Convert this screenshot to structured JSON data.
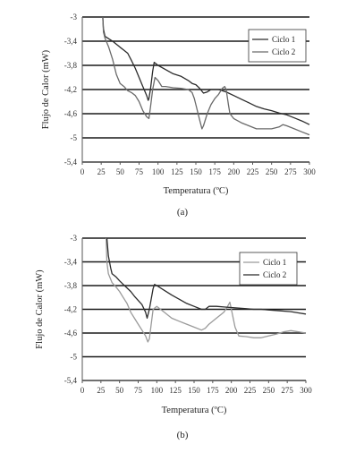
{
  "chart_data": [
    {
      "type": "line",
      "panel_label": "(a)",
      "xlabel": "Temperatura (ºC)",
      "ylabel": "Flujo de Calor (mW)",
      "xlim": [
        0,
        300
      ],
      "ylim": [
        -5.4,
        -3
      ],
      "xticks": [
        0,
        25,
        50,
        75,
        100,
        125,
        150,
        175,
        200,
        225,
        250,
        275,
        300
      ],
      "yticks": [
        -3,
        -3.4,
        -3.8,
        -4.2,
        -4.6,
        -5,
        -5.4
      ],
      "xtick_labels": [
        "0",
        "25",
        "50",
        "75",
        "100",
        "125",
        "150",
        "175",
        "200",
        "225",
        "250",
        "275",
        "300"
      ],
      "ytick_labels": [
        "-3",
        "-3,4",
        "-3,8",
        "-4,2",
        "-4,6",
        "-5",
        "-5,4"
      ],
      "grid": "horizontal",
      "legend_position": "top-right",
      "series": [
        {
          "name": "Ciclo 1",
          "color": "#2b2b2b",
          "x": [
            27,
            28,
            30,
            35,
            40,
            45,
            50,
            55,
            60,
            65,
            70,
            75,
            80,
            85,
            87,
            88,
            90,
            93,
            95,
            100,
            110,
            120,
            130,
            140,
            145,
            150,
            155,
            160,
            165,
            170,
            180,
            190,
            200,
            210,
            220,
            230,
            240,
            250,
            260,
            270,
            280,
            290,
            300
          ],
          "y": [
            -3.0,
            -3.2,
            -3.32,
            -3.36,
            -3.4,
            -3.45,
            -3.5,
            -3.55,
            -3.6,
            -3.72,
            -3.85,
            -4.0,
            -4.15,
            -4.3,
            -4.38,
            -4.35,
            -4.2,
            -3.9,
            -3.75,
            -3.8,
            -3.87,
            -3.94,
            -3.98,
            -4.05,
            -4.1,
            -4.12,
            -4.18,
            -4.26,
            -4.24,
            -4.2,
            -4.2,
            -4.24,
            -4.3,
            -4.36,
            -4.42,
            -4.48,
            -4.52,
            -4.55,
            -4.59,
            -4.62,
            -4.67,
            -4.72,
            -4.78
          ]
        },
        {
          "name": "Ciclo 2",
          "color": "#6a6a6a",
          "x": [
            27,
            28,
            30,
            35,
            40,
            45,
            50,
            55,
            60,
            65,
            70,
            75,
            80,
            85,
            88,
            90,
            93,
            96,
            100,
            105,
            110,
            120,
            130,
            140,
            145,
            148,
            150,
            155,
            158,
            160,
            165,
            170,
            175,
            180,
            185,
            188,
            190,
            193,
            195,
            200,
            210,
            220,
            230,
            240,
            250,
            260,
            265,
            270,
            280,
            290,
            300
          ],
          "y": [
            -3.0,
            -3.25,
            -3.35,
            -3.5,
            -3.7,
            -3.95,
            -4.1,
            -4.15,
            -4.22,
            -4.25,
            -4.3,
            -4.4,
            -4.55,
            -4.65,
            -4.68,
            -4.5,
            -4.2,
            -4.0,
            -4.05,
            -4.15,
            -4.15,
            -4.17,
            -4.18,
            -4.2,
            -4.25,
            -4.35,
            -4.45,
            -4.7,
            -4.85,
            -4.8,
            -4.6,
            -4.45,
            -4.35,
            -4.28,
            -4.18,
            -4.15,
            -4.2,
            -4.45,
            -4.6,
            -4.68,
            -4.75,
            -4.8,
            -4.85,
            -4.85,
            -4.85,
            -4.82,
            -4.78,
            -4.8,
            -4.85,
            -4.9,
            -4.95
          ]
        }
      ]
    },
    {
      "type": "line",
      "panel_label": "(b)",
      "xlabel": "Temperatura (ºC)",
      "ylabel": "Flujo de Calor (mW)",
      "xlim": [
        0,
        300
      ],
      "ylim": [
        -5.4,
        -3
      ],
      "xticks": [
        0,
        25,
        50,
        75,
        100,
        125,
        150,
        175,
        200,
        225,
        250,
        275,
        300
      ],
      "yticks": [
        -3,
        -3.4,
        -3.8,
        -4.2,
        -4.6,
        -5,
        -5.4
      ],
      "xtick_labels": [
        "0",
        "25",
        "50",
        "75",
        "100",
        "125",
        "150",
        "175",
        "200",
        "225",
        "250",
        "275",
        "300"
      ],
      "ytick_labels": [
        "-3",
        "-3,4",
        "-3,8",
        "-4,2",
        "-4,6",
        "-5",
        "-5,4"
      ],
      "grid": "horizontal",
      "legend_position": "top-right",
      "series": [
        {
          "name": "Ciclo 1",
          "color": "#9a9a9a",
          "x": [
            32,
            33,
            35,
            40,
            45,
            50,
            55,
            60,
            65,
            70,
            75,
            80,
            85,
            88,
            90,
            93,
            95,
            100,
            110,
            120,
            130,
            140,
            150,
            160,
            165,
            170,
            180,
            190,
            195,
            198,
            200,
            205,
            210,
            220,
            230,
            240,
            250,
            260,
            270,
            280,
            290,
            300
          ],
          "y": [
            -3.0,
            -3.4,
            -3.6,
            -3.75,
            -3.82,
            -3.9,
            -4.0,
            -4.1,
            -4.25,
            -4.35,
            -4.45,
            -4.55,
            -4.65,
            -4.75,
            -4.7,
            -4.4,
            -4.2,
            -4.15,
            -4.25,
            -4.35,
            -4.4,
            -4.45,
            -4.5,
            -4.55,
            -4.52,
            -4.45,
            -4.35,
            -4.25,
            -4.15,
            -4.08,
            -4.2,
            -4.5,
            -4.65,
            -4.66,
            -4.68,
            -4.68,
            -4.65,
            -4.62,
            -4.58,
            -4.56,
            -4.58,
            -4.6
          ]
        },
        {
          "name": "Ciclo 2",
          "color": "#2b2b2b",
          "x": [
            33,
            35,
            38,
            40,
            45,
            50,
            55,
            60,
            65,
            70,
            75,
            80,
            85,
            87,
            90,
            95,
            97,
            100,
            110,
            120,
            130,
            140,
            150,
            160,
            165,
            170,
            180,
            190,
            200,
            210,
            220,
            230,
            240,
            250,
            260,
            270,
            280,
            290,
            300
          ],
          "y": [
            -3.0,
            -3.3,
            -3.5,
            -3.6,
            -3.65,
            -3.72,
            -3.78,
            -3.84,
            -3.9,
            -3.98,
            -4.05,
            -4.12,
            -4.25,
            -4.35,
            -4.2,
            -3.85,
            -3.78,
            -3.8,
            -3.88,
            -3.96,
            -4.03,
            -4.1,
            -4.15,
            -4.2,
            -4.2,
            -4.15,
            -4.15,
            -4.16,
            -4.17,
            -4.18,
            -4.19,
            -4.2,
            -4.2,
            -4.21,
            -4.22,
            -4.23,
            -4.24,
            -4.26,
            -4.28
          ]
        }
      ]
    }
  ]
}
